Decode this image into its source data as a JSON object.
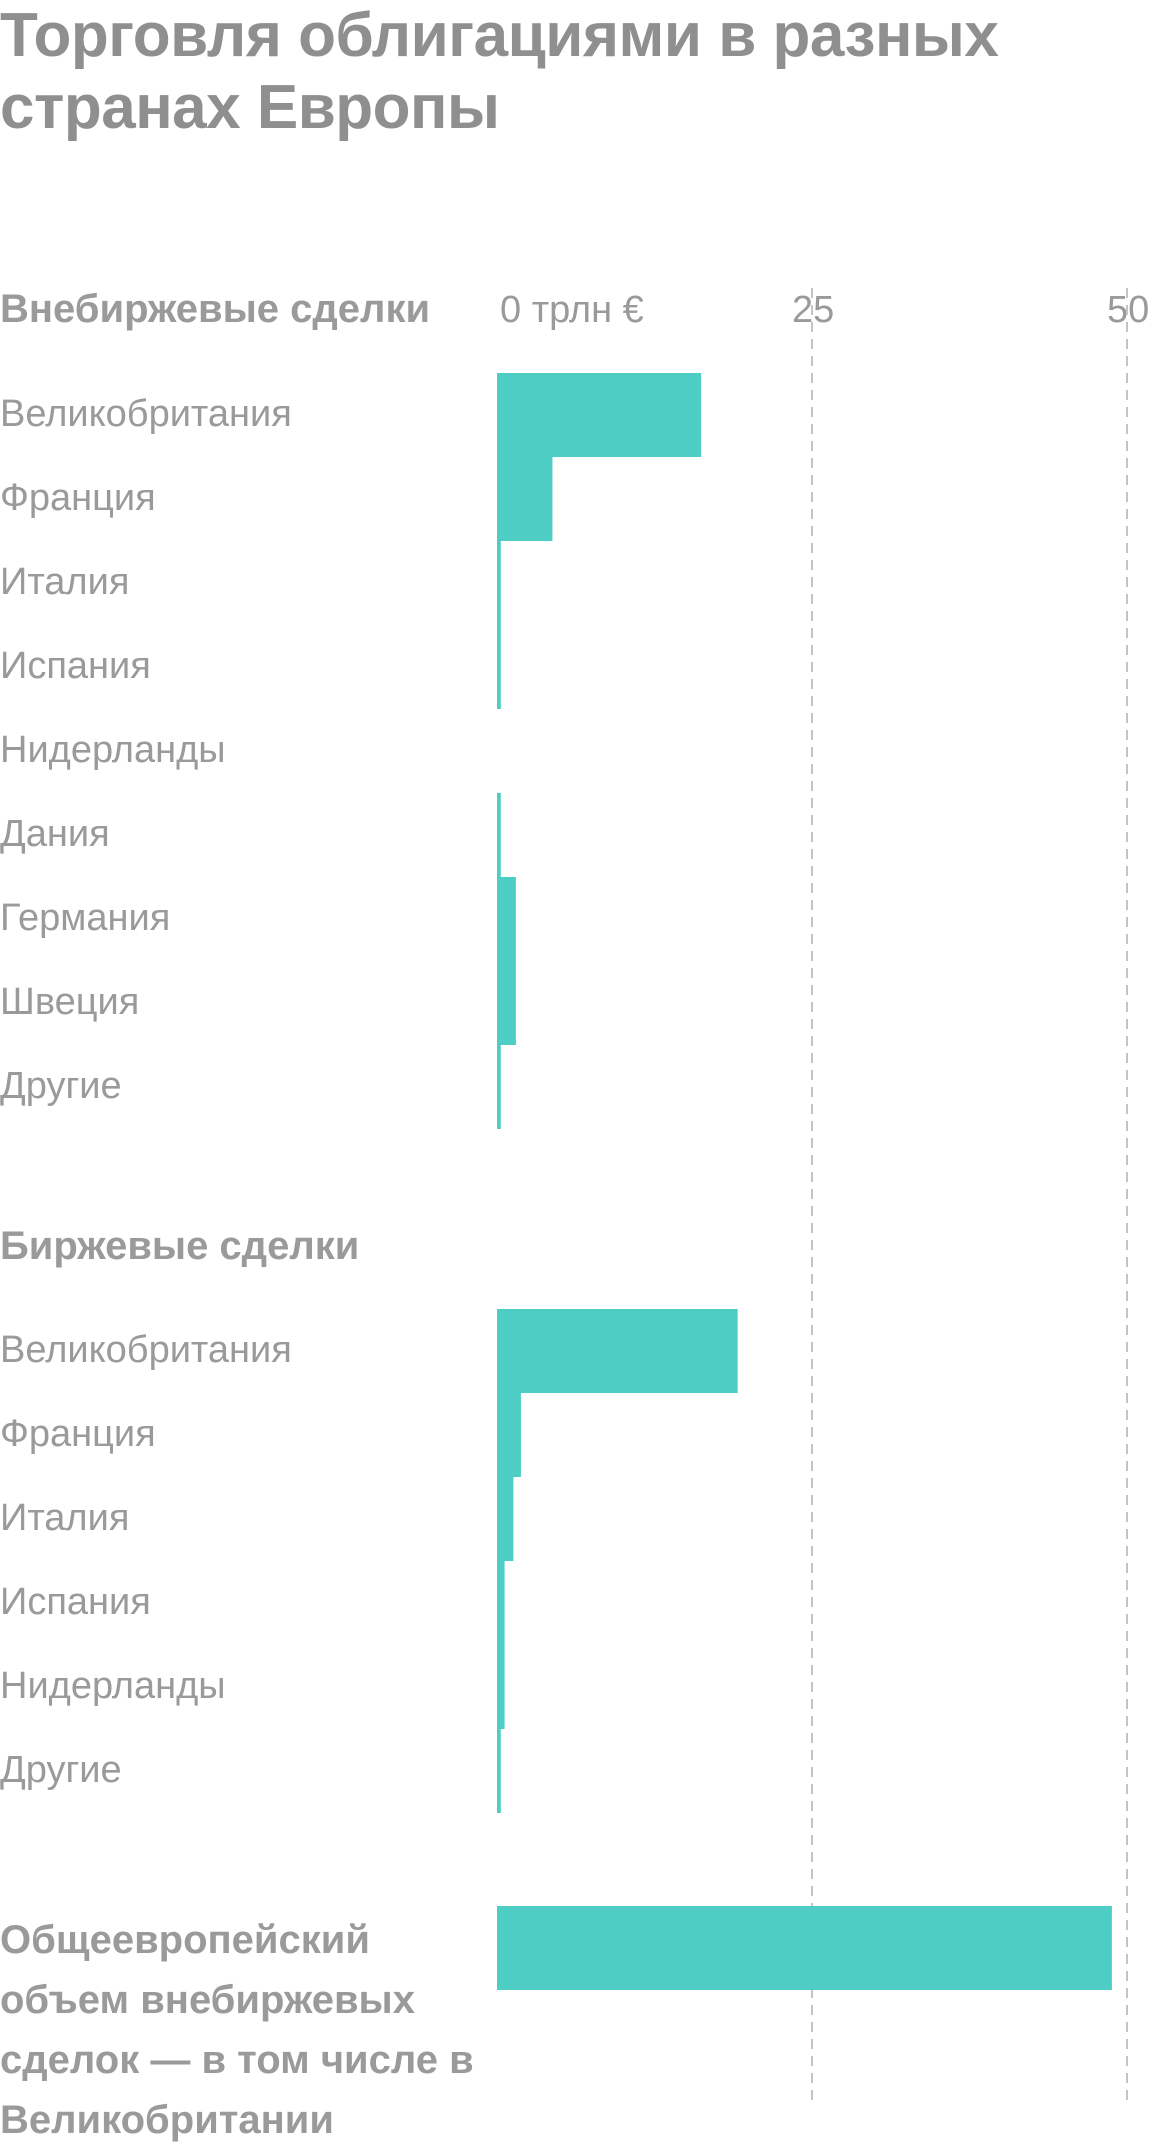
{
  "chart_data": {
    "type": "bar",
    "orientation": "horizontal",
    "title": "Торговля облигациями в разных странах Европы",
    "axis": {
      "tick_values": [
        0,
        25,
        50
      ],
      "tick_labels": [
        "0 трлн €",
        "25",
        "50"
      ],
      "xlim": [
        0,
        50
      ],
      "grid": "dashed"
    },
    "color": "#4ecdc4",
    "groups": [
      {
        "name": "Внебиржевые сделки",
        "categories": [
          "Великобритания",
          "Франция",
          "Италия",
          "Испания",
          "Нидерланды",
          "Дания",
          "Германия",
          "Швеция",
          "Другие"
        ],
        "values": [
          16.2,
          4.4,
          0.3,
          0.3,
          0,
          0.3,
          1.5,
          1.5,
          0.3
        ]
      },
      {
        "name": "Биржевые сделки",
        "categories": [
          "Великобритания",
          "Франция",
          "Италия",
          "Испания",
          "Нидерланды",
          "Другие"
        ],
        "values": [
          19.1,
          1.9,
          1.3,
          0.6,
          0.6,
          0.3
        ]
      },
      {
        "name": "Общеевропейский объем внебиржевых сделок — в том числе в Великобритании",
        "categories": [
          ""
        ],
        "values": [
          48.8
        ]
      }
    ]
  }
}
